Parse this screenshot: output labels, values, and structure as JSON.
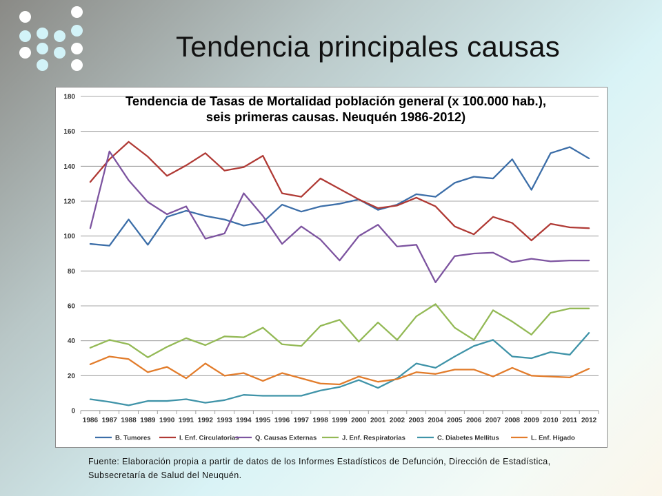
{
  "slide": {
    "title": "Tendencia principales causas",
    "source": "Fuente: Elaboración propia a partir de datos de los Informes Estadísticos de Defunción, Dirección de Estadística, Subsecretaría de Salud del Neuquén."
  },
  "decor": {
    "dot_icon": "decorative-dot-grid",
    "dot_colors": [
      "#ffffff",
      "#d2f3f8"
    ]
  },
  "chart_data": {
    "type": "line",
    "title": "Tendencia de Tasas de Mortalidad población general (x 100.000 hab.), seis primeras causas. Neuquén 1986-2012)",
    "xlabel": "",
    "ylabel": "",
    "ylim": [
      0,
      180
    ],
    "yticks": [
      0,
      20,
      40,
      60,
      80,
      100,
      120,
      140,
      160,
      180
    ],
    "grid": "horizontal",
    "legend_position": "bottom",
    "categories": [
      "1986",
      "1987",
      "1988",
      "1989",
      "1990",
      "1991",
      "1992",
      "1993",
      "1994",
      "1995",
      "1996",
      "1997",
      "1998",
      "1999",
      "2000",
      "2001",
      "2002",
      "2003",
      "2004",
      "2005",
      "2006",
      "2007",
      "2008",
      "2009",
      "2010",
      "2011",
      "2012"
    ],
    "series": [
      {
        "name": "B. Tumores",
        "color": "#3c6ea8",
        "values": [
          95.5,
          94.5,
          109.5,
          95,
          111,
          114.5,
          111.5,
          109.5,
          106,
          108,
          118,
          114,
          117,
          118.5,
          121,
          115,
          118,
          124,
          122.5,
          130.5,
          134,
          133,
          144,
          126.5,
          147.5,
          151,
          144.5
        ]
      },
      {
        "name": "I. Enf. Circulatorias",
        "color": "#b03a35",
        "values": [
          131,
          144,
          154,
          145.5,
          134.5,
          140.5,
          147.5,
          137.5,
          139.5,
          146,
          124.5,
          122.5,
          133,
          127,
          121,
          116,
          117.5,
          122,
          117,
          105.5,
          101,
          111,
          107.5,
          97.5,
          107,
          105,
          104.5
        ]
      },
      {
        "name": "Q. Causas Externas",
        "color": "#7d54a0",
        "values": [
          104.5,
          148.5,
          132,
          119.5,
          112.5,
          117,
          98.5,
          101.5,
          124.5,
          111.5,
          95.5,
          105.5,
          98,
          86,
          100,
          106.5,
          94,
          95,
          73.5,
          88.5,
          90,
          90.5,
          85,
          87,
          85.5,
          86,
          86
        ]
      },
      {
        "name": "J. Enf. Respiratorias",
        "color": "#93b955",
        "values": [
          36,
          40.5,
          38,
          30.5,
          36.5,
          41.5,
          37.5,
          42.5,
          42,
          47.5,
          38,
          37,
          48.5,
          52,
          39.5,
          50.5,
          40.5,
          54,
          61,
          47.5,
          40.5,
          57.5,
          51,
          43.5,
          56,
          58.5,
          58.5
        ]
      },
      {
        "name": "C. Diabetes Mellitus",
        "color": "#3f93a8",
        "values": [
          6.5,
          5,
          3,
          5.5,
          5.5,
          6.5,
          4.5,
          6,
          9,
          8.5,
          8.5,
          8.5,
          11.5,
          13.5,
          17.5,
          13,
          18.5,
          27,
          24.5,
          31,
          37,
          40.5,
          31,
          30,
          33.5,
          32,
          44.5
        ]
      },
      {
        "name": "L. Enf. Hígado",
        "color": "#e27c2b",
        "values": [
          26.5,
          31,
          29.5,
          22,
          25,
          18.5,
          27,
          20,
          21.5,
          17,
          21.5,
          18.5,
          15.5,
          15,
          19.5,
          16.5,
          18,
          22,
          21,
          23.5,
          23.5,
          19.5,
          24.5,
          20,
          19.5,
          19,
          24
        ]
      }
    ]
  }
}
